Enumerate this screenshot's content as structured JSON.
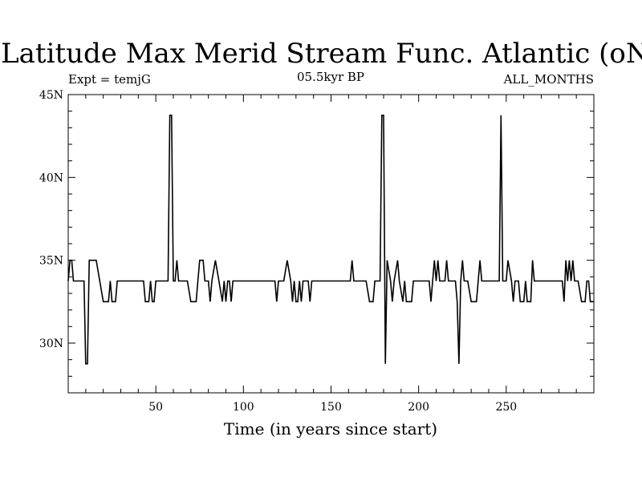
{
  "chart_data": {
    "type": "line",
    "title": "Latitude Max Merid Stream Func. Atlantic (oN)",
    "subtitle_left": "Expt = temjG",
    "subtitle_center": "05.5kyr BP",
    "subtitle_right": "ALL_MONTHS",
    "xlabel": "Time (in years since start)",
    "ylabel": "",
    "xlim": [
      0,
      300
    ],
    "ylim": [
      27,
      45
    ],
    "x_ticks": [
      50,
      100,
      150,
      200,
      250
    ],
    "x_tick_labels": [
      "50",
      "100",
      "150",
      "200",
      "250"
    ],
    "y_ticks": [
      30,
      35,
      40,
      45
    ],
    "y_tick_labels": [
      "30N",
      "35N",
      "40N",
      "45N"
    ],
    "grid": false,
    "series": [
      {
        "points": [
          [
            0,
            33.75
          ],
          [
            1,
            35
          ],
          [
            2,
            35
          ],
          [
            3,
            33.75
          ],
          [
            9,
            33.75
          ],
          [
            10,
            28.75
          ],
          [
            11,
            28.75
          ],
          [
            12,
            35
          ],
          [
            16,
            35
          ],
          [
            18,
            33.75
          ],
          [
            20,
            32.5
          ],
          [
            23,
            32.5
          ],
          [
            24,
            33.75
          ],
          [
            25,
            32.5
          ],
          [
            27,
            32.5
          ],
          [
            28,
            33.75
          ],
          [
            43,
            33.75
          ],
          [
            44,
            32.5
          ],
          [
            46,
            32.5
          ],
          [
            47,
            33.75
          ],
          [
            48,
            32.5
          ],
          [
            49,
            32.5
          ],
          [
            50,
            33.75
          ],
          [
            57,
            33.75
          ],
          [
            58,
            43.75
          ],
          [
            59,
            43.75
          ],
          [
            60,
            33.75
          ],
          [
            61,
            33.75
          ],
          [
            62,
            35
          ],
          [
            63,
            33.75
          ],
          [
            68,
            33.75
          ],
          [
            70,
            32.5
          ],
          [
            73,
            32.5
          ],
          [
            75,
            35
          ],
          [
            77,
            35
          ],
          [
            78,
            33.75
          ],
          [
            80,
            33.75
          ],
          [
            81,
            32.5
          ],
          [
            82,
            33.75
          ],
          [
            84,
            35
          ],
          [
            86,
            33.75
          ],
          [
            88,
            32.5
          ],
          [
            89,
            33.75
          ],
          [
            90,
            32.5
          ],
          [
            91,
            33.75
          ],
          [
            92,
            33.75
          ],
          [
            93,
            32.5
          ],
          [
            94,
            33.75
          ],
          [
            118,
            33.75
          ],
          [
            119,
            32.5
          ],
          [
            120,
            33.75
          ],
          [
            123,
            33.75
          ],
          [
            125,
            35
          ],
          [
            127,
            33.75
          ],
          [
            128,
            32.5
          ],
          [
            129,
            33.75
          ],
          [
            130,
            32.5
          ],
          [
            131,
            32.5
          ],
          [
            132,
            33.75
          ],
          [
            133,
            32.5
          ],
          [
            134,
            33.75
          ],
          [
            137,
            33.75
          ],
          [
            138,
            32.5
          ],
          [
            139,
            33.75
          ],
          [
            161,
            33.75
          ],
          [
            162,
            35
          ],
          [
            163,
            33.75
          ],
          [
            170,
            33.75
          ],
          [
            172,
            32.5
          ],
          [
            174,
            32.5
          ],
          [
            175,
            33.75
          ],
          [
            178,
            33.75
          ],
          [
            179,
            43.75
          ],
          [
            180,
            43.75
          ],
          [
            181,
            28.75
          ],
          [
            182,
            35
          ],
          [
            184,
            33.75
          ],
          [
            185,
            32.5
          ],
          [
            186,
            33.75
          ],
          [
            188,
            35
          ],
          [
            189,
            33.75
          ],
          [
            191,
            32.5
          ],
          [
            192,
            33.75
          ],
          [
            193,
            32.5
          ],
          [
            196,
            32.5
          ],
          [
            197,
            33.75
          ],
          [
            206,
            33.75
          ],
          [
            207,
            32.5
          ],
          [
            208,
            33.75
          ],
          [
            209,
            35
          ],
          [
            210,
            33.75
          ],
          [
            211,
            35
          ],
          [
            212,
            33.75
          ],
          [
            215,
            33.75
          ],
          [
            216,
            35
          ],
          [
            217,
            33.75
          ],
          [
            221,
            33.75
          ],
          [
            222,
            32.5
          ],
          [
            223,
            28.75
          ],
          [
            224,
            33.75
          ],
          [
            225,
            35
          ],
          [
            226,
            33.75
          ],
          [
            228,
            33.75
          ],
          [
            230,
            32.5
          ],
          [
            233,
            32.5
          ],
          [
            234,
            33.75
          ],
          [
            235,
            35
          ],
          [
            236,
            33.75
          ],
          [
            246,
            33.75
          ],
          [
            247,
            43.75
          ],
          [
            248,
            33.75
          ],
          [
            250,
            33.75
          ],
          [
            251,
            35
          ],
          [
            253,
            33.75
          ],
          [
            254,
            32.5
          ],
          [
            255,
            33.75
          ],
          [
            257,
            33.75
          ],
          [
            258,
            32.5
          ],
          [
            260,
            32.5
          ],
          [
            261,
            33.75
          ],
          [
            262,
            32.5
          ],
          [
            264,
            32.5
          ],
          [
            265,
            35
          ],
          [
            266,
            33.75
          ],
          [
            282,
            33.75
          ],
          [
            283,
            32.5
          ],
          [
            284,
            35
          ],
          [
            285,
            33.75
          ],
          [
            286,
            35
          ],
          [
            287,
            33.75
          ],
          [
            288,
            35
          ],
          [
            289,
            33.75
          ],
          [
            291,
            33.75
          ],
          [
            293,
            32.5
          ],
          [
            295,
            32.5
          ],
          [
            296,
            33.75
          ],
          [
            297,
            33.75
          ],
          [
            298,
            32.5
          ],
          [
            300,
            32.5
          ]
        ]
      }
    ]
  }
}
